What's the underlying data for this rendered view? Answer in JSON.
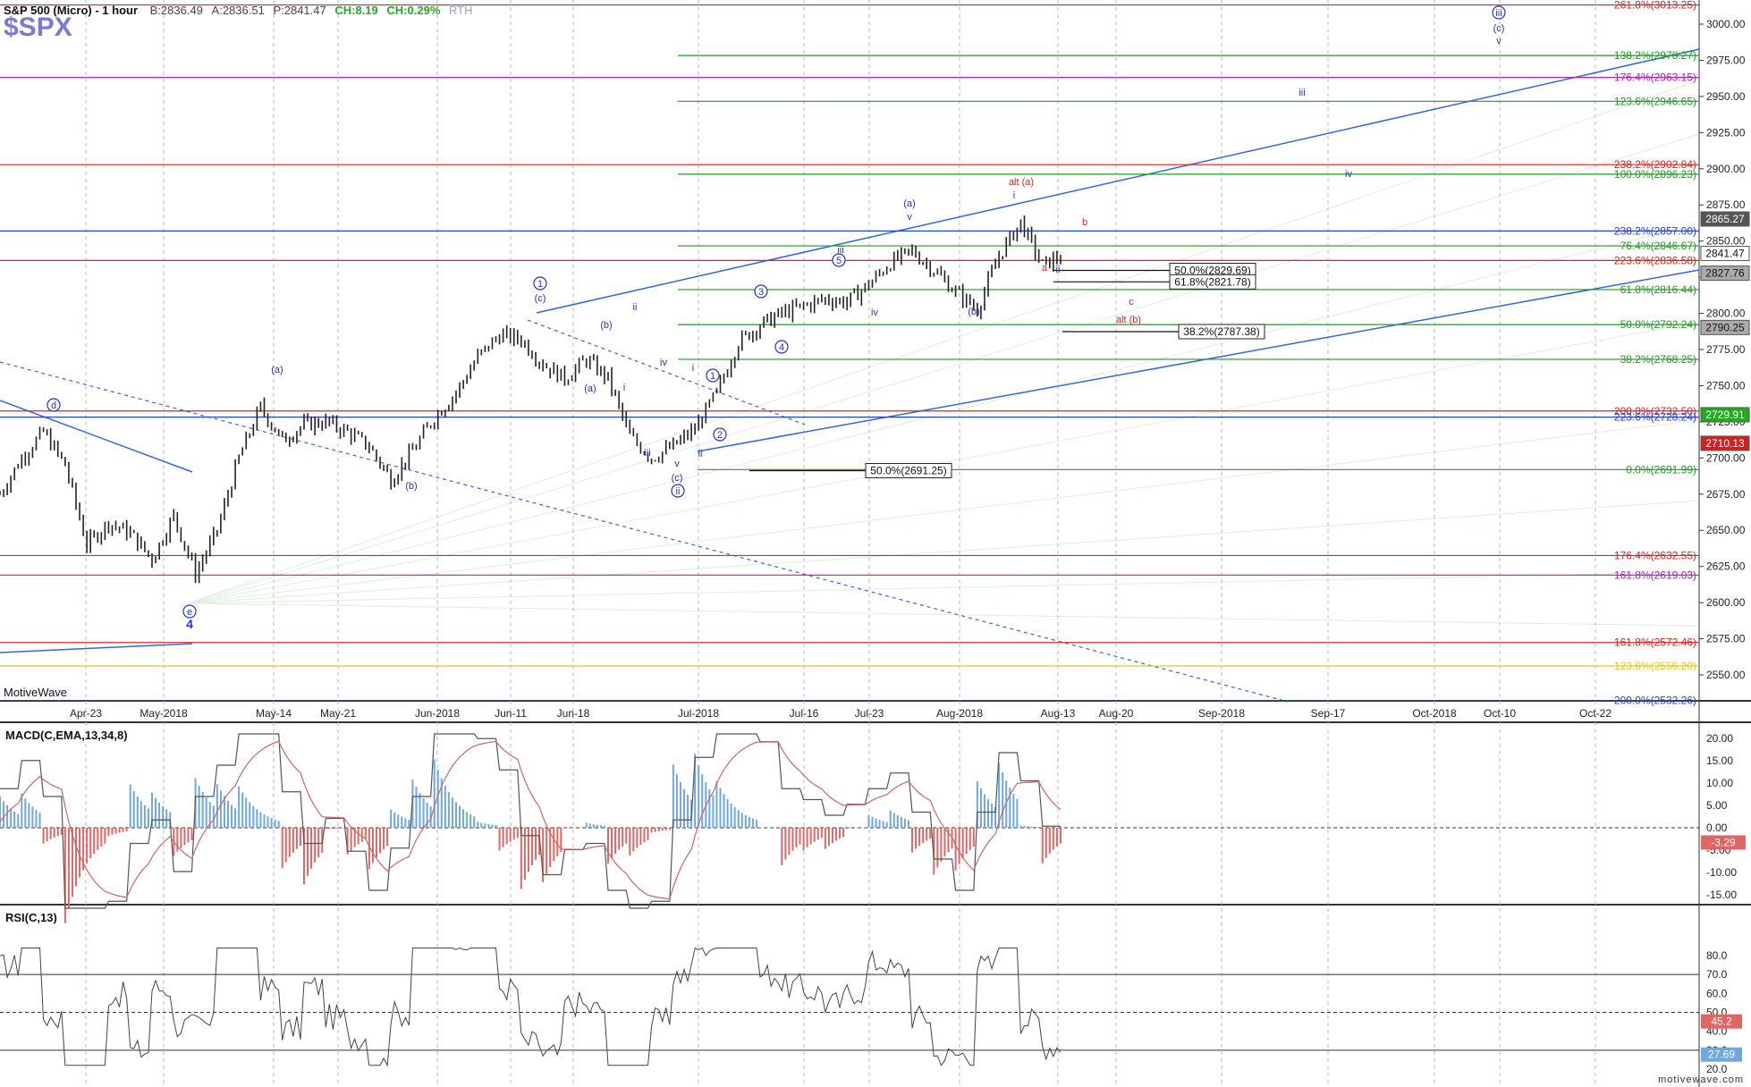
{
  "header": {
    "title": "S&P 500 (Micro) - 1 hour",
    "bid": "B:2836.49",
    "ask": "A:2836.51",
    "price": "P:2841.47",
    "change": "CH:8.19",
    "change_pct": "CH:0.29%",
    "session": "RTH",
    "symbol": "$SPX"
  },
  "watermark": "MotiveWave",
  "footer": "motivewave.com",
  "colors": {
    "up": "#22aa22",
    "down": "#cc2222",
    "wave": "#2233cc",
    "accent": "#7a7ad6"
  },
  "chart_data": [
    {
      "type": "line",
      "title": "S&P 500 (Micro) - 1 hour",
      "y_axis_labels": [
        "3000.00",
        "2975.00",
        "2950.00",
        "2925.00",
        "2900.00",
        "2875.00",
        "2850.00",
        "2825.00",
        "2800.00",
        "2775.00",
        "2750.00",
        "2725.00",
        "2700.00",
        "2675.00",
        "2650.00",
        "2625.00",
        "2600.00",
        "2575.00",
        "2550.00"
      ],
      "x_axis_labels": [
        "Apr-23",
        "May-2018",
        "May-14",
        "May-21",
        "Jun-2018",
        "Jun-11",
        "Jun-18",
        "Jul-2018",
        "Jul-16",
        "Jul-23",
        "Aug-2018",
        "Aug-13",
        "Aug-20",
        "Sep-2018",
        "Sep-17",
        "Oct-2018",
        "Oct-10",
        "Oct-22"
      ],
      "ylim": [
        2530,
        3015
      ],
      "price_tags": [
        {
          "value": 2865.27,
          "label": "2865.27",
          "color": "#555555"
        },
        {
          "value": 2841.47,
          "label": "2841.47",
          "color": "#ffffff"
        },
        {
          "value": 2827.76,
          "label": "2827.76",
          "color": "#aaaaaa"
        },
        {
          "value": 2790.25,
          "label": "2790.25",
          "color": "#aaaaaa"
        },
        {
          "value": 2729.91,
          "label": "2729.91",
          "color": "#22aa22"
        },
        {
          "value": 2710.13,
          "label": "2710.13",
          "color": "#cc2222"
        }
      ],
      "fib_levels": [
        {
          "label": "261.8%(3013.25)",
          "value": 3013.25,
          "color": "#dd2222"
        },
        {
          "label": "138.2%(2978.27)",
          "value": 2978.27,
          "color": "#229922"
        },
        {
          "label": "176.4%(2963.15)",
          "value": 2963.15,
          "color": "#aa22aa"
        },
        {
          "label": "123.6%(2946.65)",
          "value": 2946.65,
          "color": "#229922"
        },
        {
          "label": "238.2%(2902.84)",
          "value": 2902.84,
          "color": "#dd2222"
        },
        {
          "label": "100.0%(2896.23)",
          "value": 2896.23,
          "color": "#229922"
        },
        {
          "label": "238.2%(2857.00)",
          "value": 2857.0,
          "color": "#2244cc"
        },
        {
          "label": "76.4%(2846.67)",
          "value": 2846.67,
          "color": "#229922"
        },
        {
          "label": "223.6%(2836.58)",
          "value": 2836.58,
          "color": "#dd2222"
        },
        {
          "label": "61.8%(2816.44)",
          "value": 2816.44,
          "color": "#229922"
        },
        {
          "label": "50.0%(2792.24)",
          "value": 2792.24,
          "color": "#229922"
        },
        {
          "label": "38.2%(2768.25)",
          "value": 2768.25,
          "color": "#229922"
        },
        {
          "label": "200.0%(2732.50)",
          "value": 2732.5,
          "color": "#dd2222"
        },
        {
          "label": "223.6%(2728.24)",
          "value": 2728.24,
          "color": "#2244cc"
        },
        {
          "label": "0.0%(2691.99)",
          "value": 2691.99,
          "color": "#229922"
        },
        {
          "label": "176.4%(2632.55)",
          "value": 2632.55,
          "color": "#dd2222"
        },
        {
          "label": "161.8%(2619.03)",
          "value": 2619.03,
          "color": "#aa22aa"
        },
        {
          "label": "161.8%(2572.46)",
          "value": 2572.46,
          "color": "#dd2222"
        },
        {
          "label": "123.6%(2556.20)",
          "value": 2556.2,
          "color": "#ddcc22"
        },
        {
          "label": "200.0%(2532.26)",
          "value": 2532.26,
          "color": "#2244cc"
        }
      ],
      "retracement_boxes": [
        {
          "label": "50.0%(2829.69)",
          "value": 2829.69
        },
        {
          "label": "61.8%(2821.78)",
          "value": 2821.78
        },
        {
          "label": "38.2%(2787.38)",
          "value": 2787.38
        },
        {
          "label": "50.0%(2691.25)",
          "value": 2691.25
        }
      ],
      "wave_labels": [
        "d",
        "(a)",
        "(b)",
        "e",
        "4",
        "1",
        "(c)",
        "(b)",
        "ii",
        "(a)",
        "i",
        "iv",
        "i",
        "iii",
        "v",
        "(c)",
        "ii",
        "1",
        "2",
        "ii",
        "3",
        "4",
        "5",
        "iii",
        "iv",
        "(a)",
        "v",
        "(b)",
        "alt (a)",
        "i",
        "b",
        "a",
        "ii",
        "c",
        "alt (b)",
        "iii",
        "iv",
        "iii",
        "(c)",
        "v"
      ],
      "price_series": {
        "x_dates": [
          "Apr-16",
          "Apr-18",
          "Apr-20",
          "Apr-23",
          "Apr-25",
          "Apr-27",
          "Apr-30",
          "May-02",
          "May-04",
          "May-07",
          "May-09",
          "May-11",
          "May-14",
          "May-16",
          "May-18",
          "May-21",
          "May-23",
          "May-25",
          "May-29",
          "May-31",
          "Jun-04",
          "Jun-06",
          "Jun-08",
          "Jun-11",
          "Jun-13",
          "Jun-15",
          "Jun-18",
          "Jun-20",
          "Jun-22",
          "Jun-25",
          "Jun-27",
          "Jun-29",
          "Jul-02",
          "Jul-05",
          "Jul-09",
          "Jul-11",
          "Jul-13",
          "Jul-16",
          "Jul-18",
          "Jul-20",
          "Jul-23",
          "Jul-25",
          "Jul-27",
          "Jul-30",
          "Aug-01",
          "Aug-03",
          "Aug-06",
          "Aug-08",
          "Aug-10",
          "Aug-13"
        ],
        "close": [
          2675,
          2700,
          2718,
          2695,
          2640,
          2655,
          2648,
          2630,
          2660,
          2620,
          2650,
          2700,
          2735,
          2712,
          2723,
          2725,
          2718,
          2708,
          2685,
          2705,
          2728,
          2745,
          2770,
          2785,
          2782,
          2765,
          2755,
          2768,
          2755,
          2715,
          2700,
          2708,
          2720,
          2745,
          2780,
          2792,
          2800,
          2805,
          2810,
          2808,
          2820,
          2835,
          2843,
          2830,
          2815,
          2803,
          2840,
          2863,
          2833,
          2841
        ]
      }
    },
    {
      "type": "line",
      "title": "MACD(C,EMA,13,34,8)",
      "y_axis_labels": [
        "20.00",
        "15.00",
        "10.00",
        "5.00",
        "0.00",
        "-5.00",
        "-10.00",
        "-15.00"
      ],
      "ylim": [
        -22,
        23
      ],
      "current_value": "-3.29"
    },
    {
      "type": "line",
      "title": "RSI(C,13)",
      "y_axis_labels": [
        "80.0",
        "70.0",
        "60.0",
        "50.0",
        "40.0",
        "30.0",
        "20.0"
      ],
      "ylim": [
        18,
        88
      ],
      "current_values": [
        "45.2",
        "27.69"
      ]
    }
  ]
}
